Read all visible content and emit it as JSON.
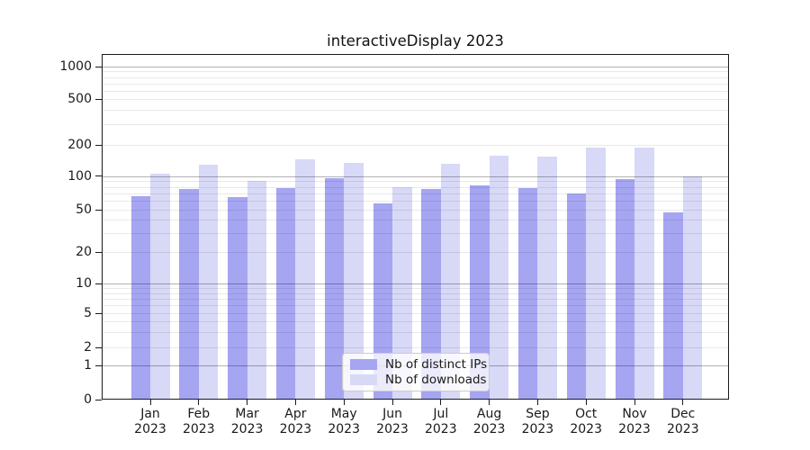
{
  "chart_data": {
    "type": "bar",
    "title": "interactiveDisplay 2023",
    "categories": [
      "Jan",
      "Feb",
      "Mar",
      "Apr",
      "May",
      "Jun",
      "Jul",
      "Aug",
      "Sep",
      "Oct",
      "Nov",
      "Dec"
    ],
    "year_label": "2023",
    "series": [
      {
        "name": "Nb of distinct IPs",
        "color": "#a5a5f2",
        "values": [
          66,
          76,
          65,
          78,
          96,
          57,
          76,
          82,
          78,
          70,
          94,
          47
        ]
      },
      {
        "name": "Nb of downloads",
        "color": "#d8d8f7",
        "values": [
          106,
          128,
          91,
          146,
          134,
          80,
          131,
          156,
          153,
          190,
          188,
          99
        ]
      }
    ],
    "yscale": "symlog",
    "ytick_labels": [
      "0",
      "1",
      "2",
      "5",
      "10",
      "20",
      "50",
      "100",
      "200",
      "500",
      "1000"
    ],
    "ylim": [
      0,
      1350
    ],
    "grid": "major and minor horizontal gridlines drawn above bars",
    "legend_position": "lower center"
  },
  "colors": {
    "background": "#ffffff",
    "spine": "#1a1a1a",
    "major_grid": "rgba(0,0,0,0.30)",
    "minor_grid": "rgba(0,0,0,0.085)"
  }
}
